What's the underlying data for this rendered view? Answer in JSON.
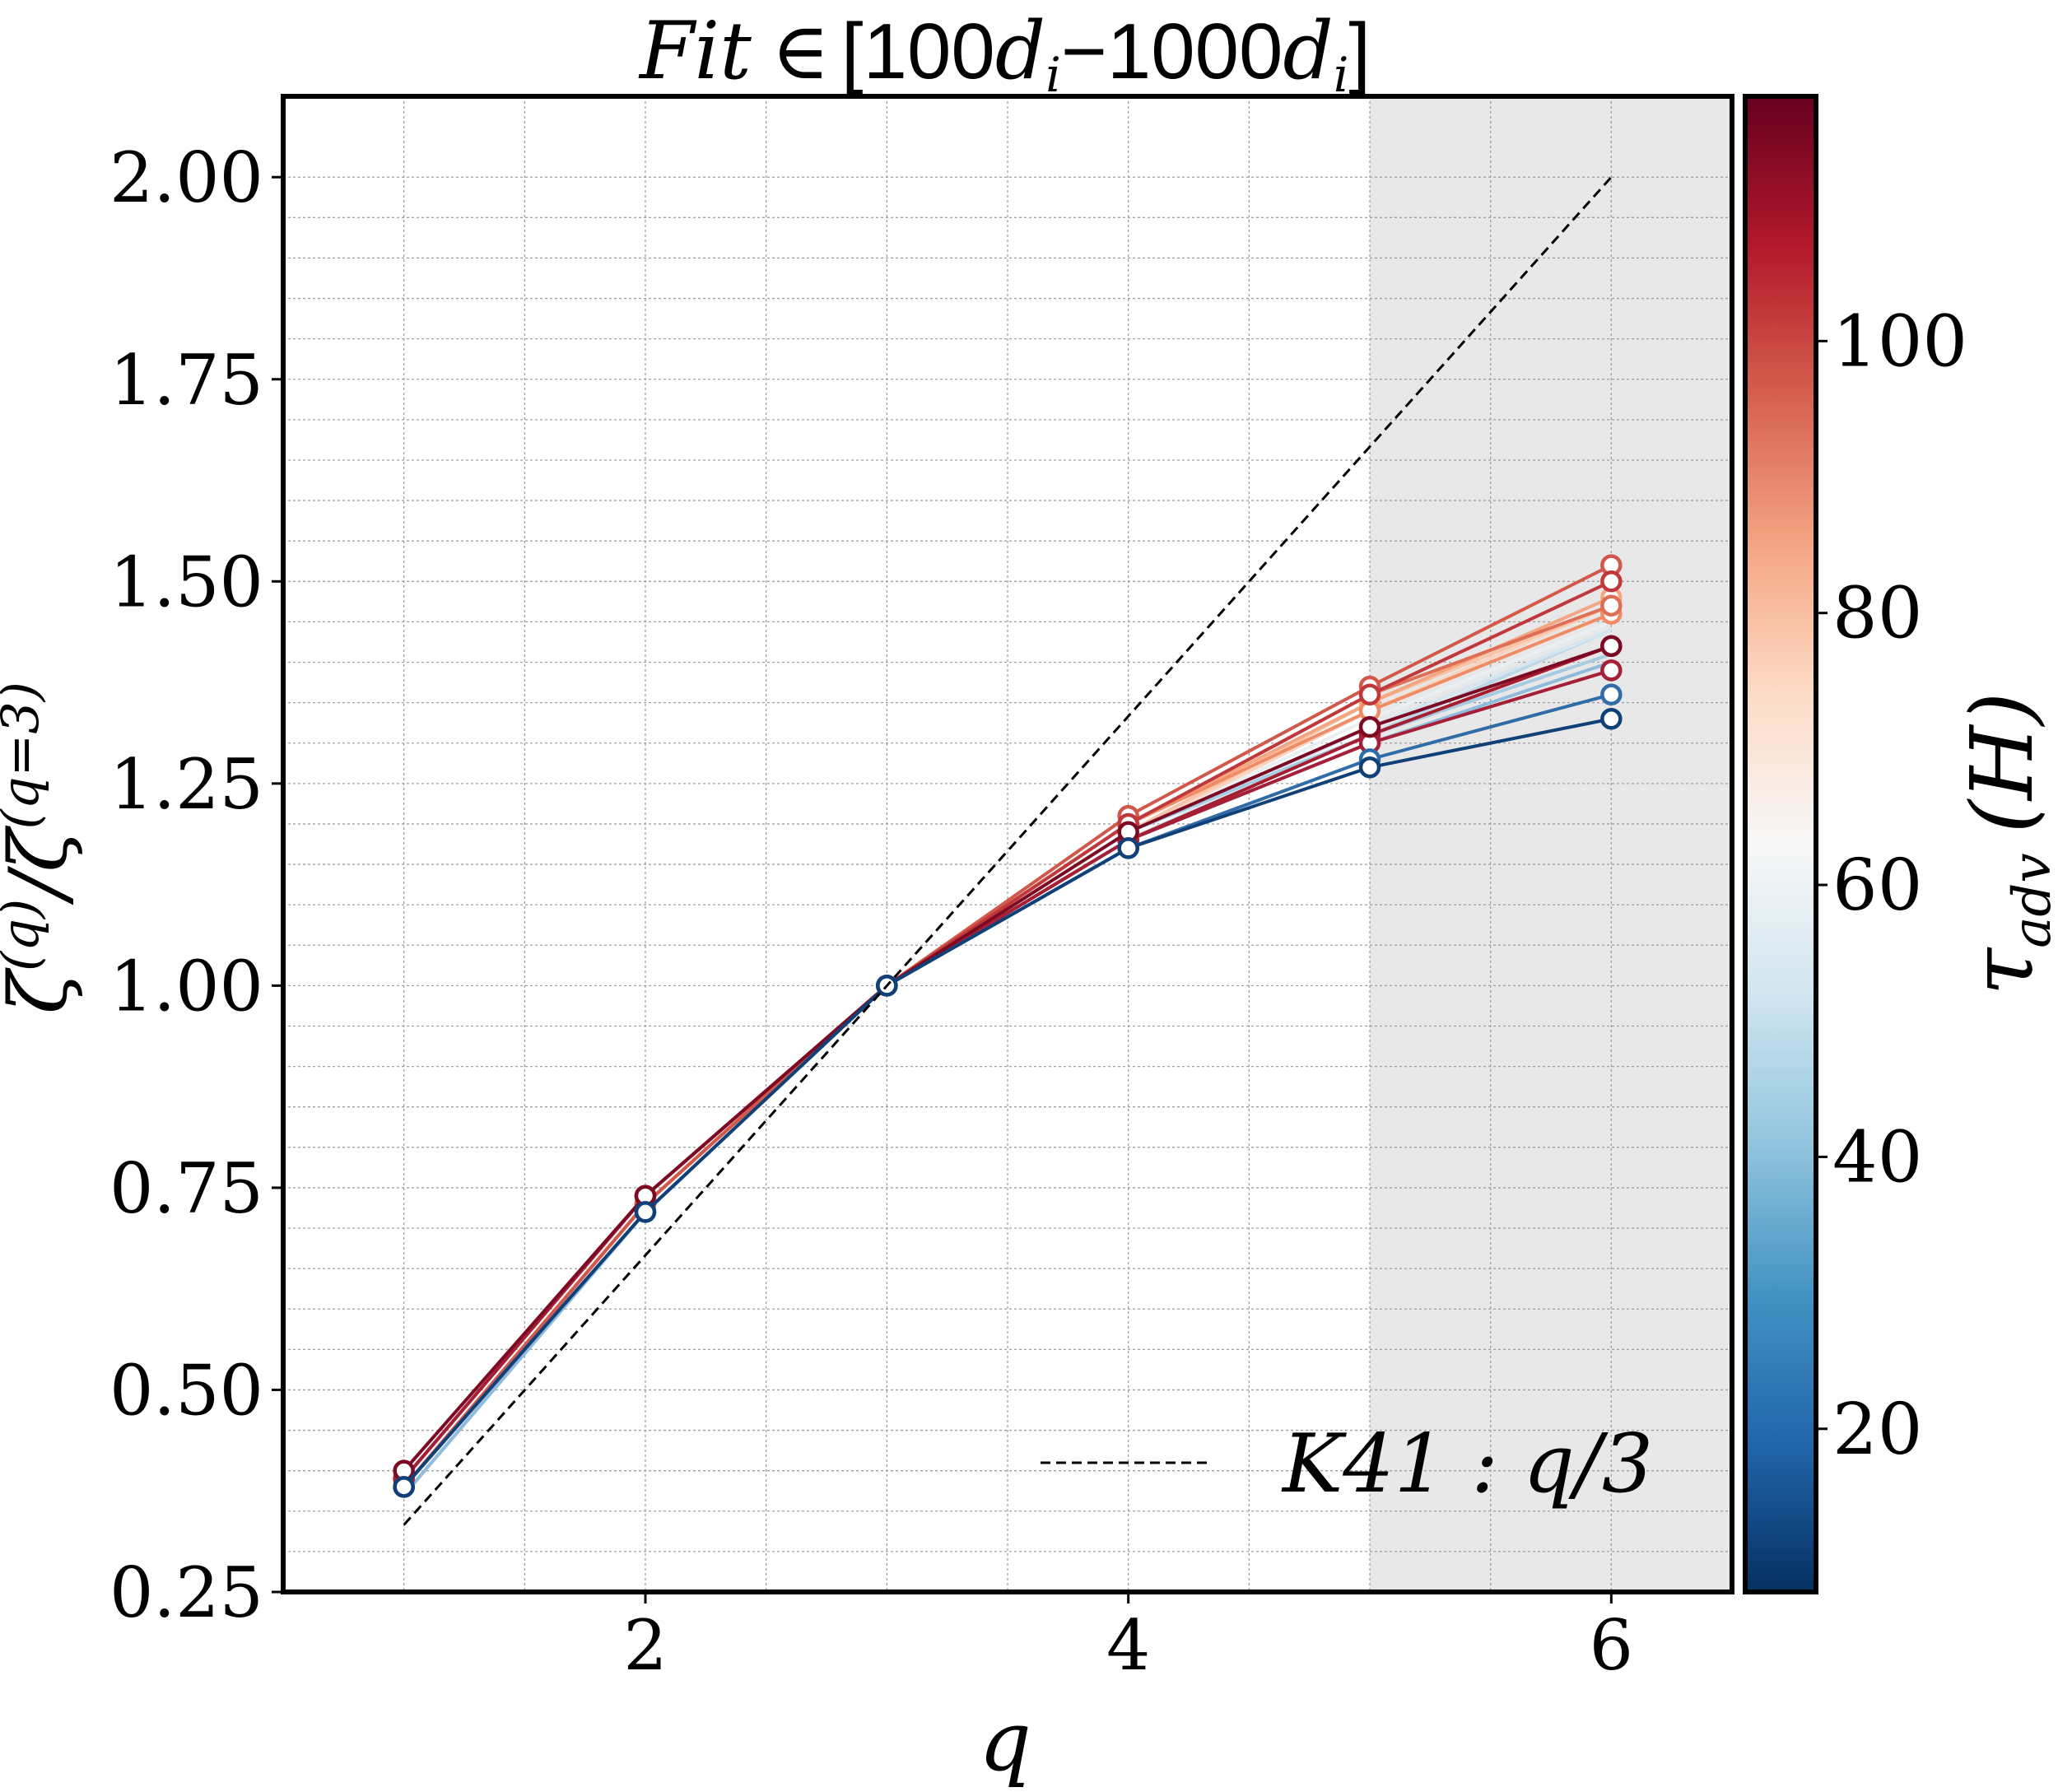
{
  "chart_data": {
    "type": "line",
    "title": {
      "prefix": "Fit",
      "in": "∈",
      "lb": "[",
      "a": "100",
      "ai": "i",
      "dash": "−",
      "b": "1000",
      "bi": "i",
      "rb": "]"
    },
    "xlabel": "q",
    "ylabel": {
      "zeta": "ζ",
      "q": "(q)",
      "slash": "/",
      "q3": "(q=3)"
    },
    "xlim": [
      0.5,
      6.5
    ],
    "ylim": [
      0.25,
      2.1
    ],
    "xticks": [
      2,
      4,
      6
    ],
    "xtick_labels": [
      "2",
      "4",
      "6"
    ],
    "yticks": [
      0.25,
      0.5,
      0.75,
      1.0,
      1.25,
      1.5,
      1.75,
      2.0
    ],
    "ytick_labels": [
      "0.25",
      "0.50",
      "0.75",
      "1.00",
      "1.25",
      "1.50",
      "1.75",
      "2.00"
    ],
    "grid": true,
    "shaded_region_x": [
      5.0,
      6.5
    ],
    "shaded_color": "#e8e8e8",
    "x": [
      1,
      2,
      3,
      4,
      5,
      6
    ],
    "reference_line": {
      "name_k": "K",
      "name_rest": "41 :",
      "name_q": "q",
      "name_tail": "/3",
      "x": [
        1,
        6
      ],
      "y": [
        0.333,
        2.0
      ],
      "style": "dashed",
      "color": "#000000"
    },
    "legend_position": "lower right",
    "series": [
      {
        "values": [
          0.37,
          0.72,
          1.0,
          1.18,
          1.31,
          1.44
        ],
        "color": "#bcd7e9",
        "marker": "none"
      },
      {
        "values": [
          0.37,
          0.72,
          1.0,
          1.18,
          1.32,
          1.44
        ],
        "color": "#d6e6f0",
        "marker": "none"
      },
      {
        "values": [
          0.37,
          0.72,
          1.0,
          1.19,
          1.33,
          1.45
        ],
        "color": "#e9eff2",
        "marker": "none"
      },
      {
        "values": [
          0.37,
          0.72,
          1.0,
          1.19,
          1.34,
          1.46
        ],
        "color": "#f6e7de",
        "marker": "none"
      },
      {
        "values": [
          0.37,
          0.72,
          1.0,
          1.19,
          1.34,
          1.47
        ],
        "color": "#f9d5c0",
        "marker": "none"
      },
      {
        "values": [
          0.38,
          0.73,
          1.0,
          1.19,
          1.35,
          1.47
        ],
        "color": "#f7c4a8",
        "marker": "none"
      },
      {
        "values": [
          0.37,
          0.72,
          1.0,
          1.19,
          1.31,
          1.41
        ],
        "color": "#a8cbe2",
        "marker": "none"
      },
      {
        "values": [
          0.37,
          0.72,
          1.0,
          1.18,
          1.3,
          1.4
        ],
        "color": "#8fbcdc",
        "marker": "none"
      },
      {
        "values": [
          0.38,
          0.73,
          1.0,
          1.2,
          1.35,
          1.48
        ],
        "color": "#f4a582",
        "marker": "circle"
      },
      {
        "values": [
          0.38,
          0.73,
          1.0,
          1.2,
          1.34,
          1.46
        ],
        "color": "#ef8c66",
        "marker": "circle"
      },
      {
        "values": [
          0.38,
          0.73,
          1.0,
          1.2,
          1.36,
          1.47
        ],
        "color": "#de6f55",
        "marker": "circle"
      },
      {
        "values": [
          0.38,
          0.73,
          1.0,
          1.21,
          1.37,
          1.52
        ],
        "color": "#d1584a",
        "marker": "circle"
      },
      {
        "values": [
          0.39,
          0.74,
          1.0,
          1.2,
          1.36,
          1.5
        ],
        "color": "#c0383b",
        "marker": "circle"
      },
      {
        "values": [
          0.39,
          0.74,
          1.0,
          1.18,
          1.31,
          1.42
        ],
        "color": "#a71d30",
        "marker": "circle"
      },
      {
        "values": [
          0.39,
          0.74,
          1.0,
          1.18,
          1.3,
          1.39
        ],
        "color": "#a51f36",
        "marker": "circle"
      },
      {
        "values": [
          0.4,
          0.74,
          1.0,
          1.19,
          1.32,
          1.42
        ],
        "color": "#7d0a23",
        "marker": "circle"
      },
      {
        "values": [
          0.38,
          0.72,
          1.0,
          1.17,
          1.28,
          1.36
        ],
        "color": "#2f6ca8",
        "marker": "circle"
      },
      {
        "values": [
          0.38,
          0.72,
          1.0,
          1.17,
          1.27,
          1.33
        ],
        "color": "#0f4077",
        "marker": "circle"
      }
    ],
    "colorbar": {
      "label_tau": "τ",
      "label_sub": "adv",
      "label_unit": "(H)",
      "range": [
        8,
        118
      ],
      "ticks": [
        20,
        40,
        60,
        80,
        100
      ],
      "tick_labels": [
        "20",
        "40",
        "60",
        "80",
        "100"
      ],
      "colormap": "RdBu_r",
      "stops": [
        "#053061",
        "#2166ac",
        "#4393c3",
        "#92c5de",
        "#d1e5f0",
        "#f7f7f7",
        "#fddbc7",
        "#f4a582",
        "#d6604d",
        "#b2182b",
        "#67001f"
      ]
    }
  }
}
